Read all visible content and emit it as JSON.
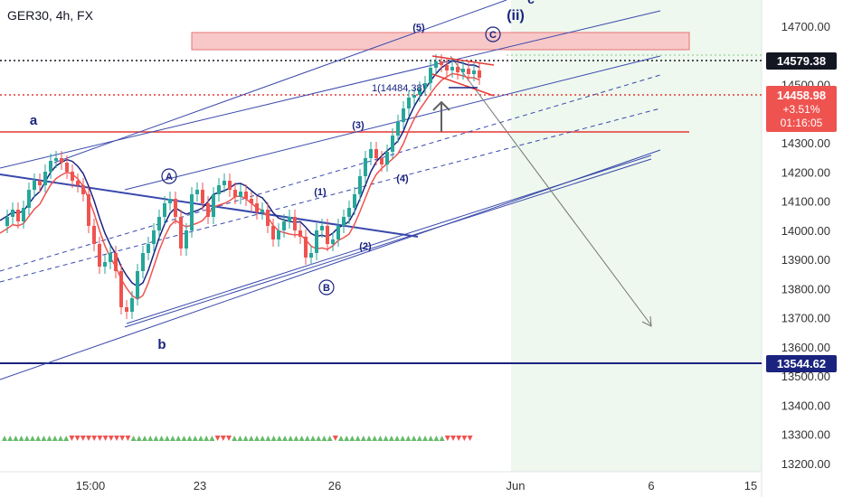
{
  "chart_data": {
    "type": "candlestick",
    "title": "GER30, 4h, FX",
    "y_axis": {
      "ylim": [
        13150,
        14850
      ],
      "ticks": [
        "14700.00",
        "14500.00",
        "14400.00",
        "14300.00",
        "14200.00",
        "14100.00",
        "14000.00",
        "13900.00",
        "13800.00",
        "13700.00",
        "13600.00",
        "13500.00",
        "13400.00",
        "13300.00",
        "13200.00"
      ]
    },
    "x_axis": {
      "ticks": [
        "15:00",
        "23",
        "26",
        "Jun",
        "6",
        "15"
      ]
    },
    "price_badges": {
      "last": "14579.38",
      "current": "14458.98",
      "change": "+3.51%",
      "countdown": "01:16:05",
      "lower": "13544.62"
    },
    "wave_labels": {
      "ii": "(ii)",
      "c_top": "c",
      "C": "C",
      "five": "(5)",
      "four": "(4)",
      "three": "(3)",
      "two": "(2)",
      "one": "(1)",
      "A": "A",
      "B": "B",
      "a": "a",
      "b": "b"
    },
    "fib_label": "1(14484.38)",
    "levels": {
      "resistance_zone": [
        14620,
        14680
      ],
      "support_line_red": 14333,
      "dotted_black": 14579.38,
      "dotted_red": 14458.98,
      "navy_line": 13544.62
    },
    "colors": {
      "up": "#26a69a",
      "down": "#ef5350",
      "navy": "#1a237e",
      "channel": "#3949ab",
      "zone": "#f8c8c8"
    }
  }
}
